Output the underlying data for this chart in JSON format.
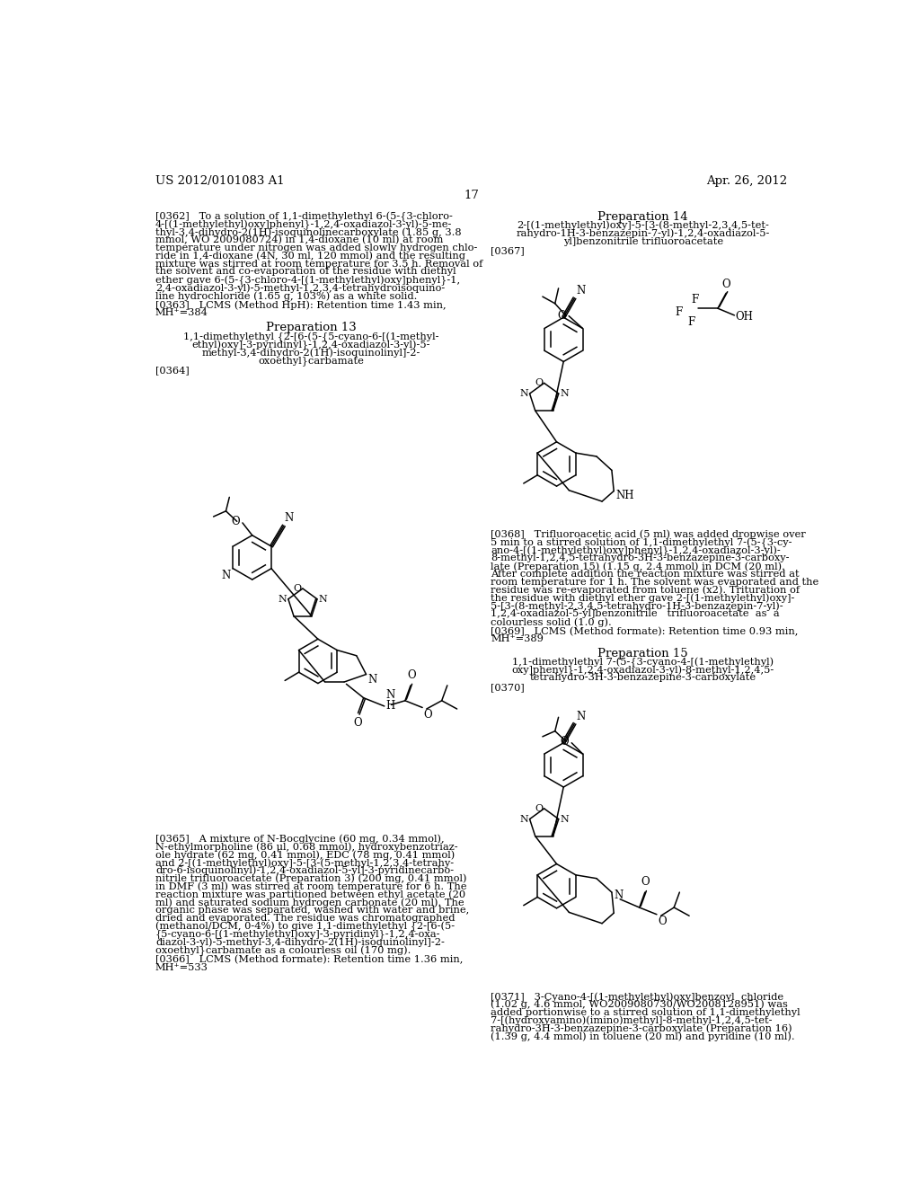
{
  "background_color": "#ffffff",
  "header_left": "US 2012/0101083 A1",
  "header_right": "Apr. 26, 2012",
  "page_number": "17",
  "fs_body": 8.2,
  "fs_header": 9.5,
  "fs_prep": 9.0,
  "ls": 11.5
}
